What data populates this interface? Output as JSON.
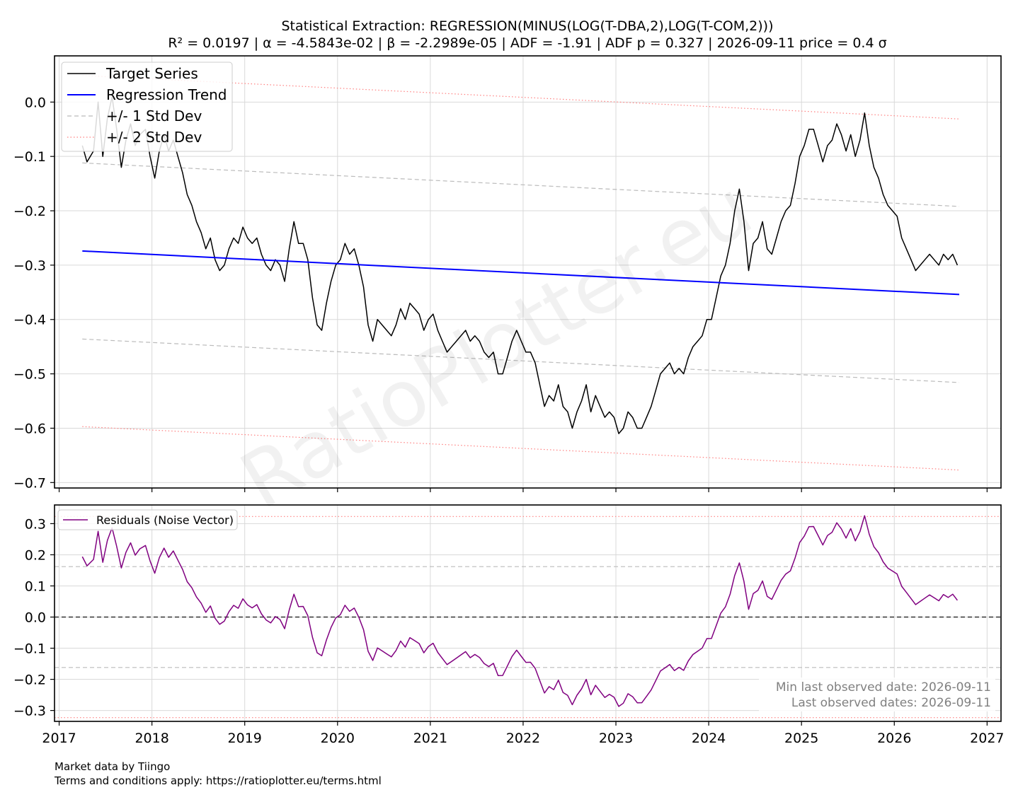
{
  "chart_data": [
    {
      "panel": "main",
      "type": "line",
      "title": "Statistical Extraction: REGRESSION(MINUS(LOG(T-DBA,2),LOG(T-COM,2)))",
      "subtitle": "R² = 0.0197 | α = -4.5843e-02 | β = -2.2989e-05 | ADF = -1.91 | ADF p = 0.327 | 2026-09-11 price = 0.4 σ",
      "xlabel": "",
      "ylabel": "",
      "xlim": [
        2016.95,
        2027.15
      ],
      "ylim": [
        -0.71,
        0.085
      ],
      "grid": true,
      "legend_position": "top-left",
      "xticks": [
        "2017",
        "2018",
        "2019",
        "2020",
        "2021",
        "2022",
        "2023",
        "2024",
        "2025",
        "2026",
        "2027"
      ],
      "yticks": [
        "0.0",
        "−0.1",
        "−0.2",
        "−0.3",
        "−0.4",
        "−0.5",
        "−0.6",
        "−0.7"
      ],
      "ytick_values": [
        0.0,
        -0.1,
        -0.2,
        -0.3,
        -0.4,
        -0.5,
        -0.6,
        -0.7
      ],
      "series": [
        {
          "name": "Target Series",
          "color": "#000000",
          "style": "solid",
          "points": [
            [
              2017.25,
              -0.08
            ],
            [
              2017.3,
              -0.11
            ],
            [
              2017.37,
              -0.09
            ],
            [
              2017.42,
              0.0
            ],
            [
              2017.47,
              -0.1
            ],
            [
              2017.52,
              -0.03
            ],
            [
              2017.57,
              0.01
            ],
            [
              2017.62,
              -0.05
            ],
            [
              2017.67,
              -0.12
            ],
            [
              2017.72,
              -0.07
            ],
            [
              2017.77,
              -0.04
            ],
            [
              2017.82,
              -0.08
            ],
            [
              2017.87,
              -0.06
            ],
            [
              2017.93,
              -0.05
            ],
            [
              2017.98,
              -0.1
            ],
            [
              2018.03,
              -0.14
            ],
            [
              2018.08,
              -0.09
            ],
            [
              2018.13,
              -0.06
            ],
            [
              2018.18,
              -0.09
            ],
            [
              2018.23,
              -0.07
            ],
            [
              2018.28,
              -0.1
            ],
            [
              2018.33,
              -0.13
            ],
            [
              2018.38,
              -0.17
            ],
            [
              2018.43,
              -0.19
            ],
            [
              2018.48,
              -0.22
            ],
            [
              2018.53,
              -0.24
            ],
            [
              2018.58,
              -0.27
            ],
            [
              2018.63,
              -0.25
            ],
            [
              2018.68,
              -0.29
            ],
            [
              2018.73,
              -0.31
            ],
            [
              2018.78,
              -0.3
            ],
            [
              2018.83,
              -0.27
            ],
            [
              2018.88,
              -0.25
            ],
            [
              2018.93,
              -0.26
            ],
            [
              2018.98,
              -0.23
            ],
            [
              2019.03,
              -0.25
            ],
            [
              2019.08,
              -0.26
            ],
            [
              2019.13,
              -0.25
            ],
            [
              2019.18,
              -0.28
            ],
            [
              2019.23,
              -0.3
            ],
            [
              2019.28,
              -0.31
            ],
            [
              2019.33,
              -0.29
            ],
            [
              2019.38,
              -0.3
            ],
            [
              2019.43,
              -0.33
            ],
            [
              2019.48,
              -0.27
            ],
            [
              2019.53,
              -0.22
            ],
            [
              2019.58,
              -0.26
            ],
            [
              2019.63,
              -0.26
            ],
            [
              2019.68,
              -0.29
            ],
            [
              2019.73,
              -0.36
            ],
            [
              2019.78,
              -0.41
            ],
            [
              2019.83,
              -0.42
            ],
            [
              2019.88,
              -0.37
            ],
            [
              2019.93,
              -0.33
            ],
            [
              2019.98,
              -0.3
            ],
            [
              2020.03,
              -0.29
            ],
            [
              2020.08,
              -0.26
            ],
            [
              2020.13,
              -0.28
            ],
            [
              2020.18,
              -0.27
            ],
            [
              2020.23,
              -0.3
            ],
            [
              2020.28,
              -0.34
            ],
            [
              2020.33,
              -0.41
            ],
            [
              2020.38,
              -0.44
            ],
            [
              2020.43,
              -0.4
            ],
            [
              2020.48,
              -0.41
            ],
            [
              2020.53,
              -0.42
            ],
            [
              2020.58,
              -0.43
            ],
            [
              2020.63,
              -0.41
            ],
            [
              2020.68,
              -0.38
            ],
            [
              2020.73,
              -0.4
            ],
            [
              2020.78,
              -0.37
            ],
            [
              2020.83,
              -0.38
            ],
            [
              2020.88,
              -0.39
            ],
            [
              2020.93,
              -0.42
            ],
            [
              2020.98,
              -0.4
            ],
            [
              2021.03,
              -0.39
            ],
            [
              2021.08,
              -0.42
            ],
            [
              2021.13,
              -0.44
            ],
            [
              2021.18,
              -0.46
            ],
            [
              2021.23,
              -0.45
            ],
            [
              2021.28,
              -0.44
            ],
            [
              2021.33,
              -0.43
            ],
            [
              2021.38,
              -0.42
            ],
            [
              2021.43,
              -0.44
            ],
            [
              2021.48,
              -0.43
            ],
            [
              2021.53,
              -0.44
            ],
            [
              2021.58,
              -0.46
            ],
            [
              2021.63,
              -0.47
            ],
            [
              2021.68,
              -0.46
            ],
            [
              2021.73,
              -0.5
            ],
            [
              2021.78,
              -0.5
            ],
            [
              2021.83,
              -0.47
            ],
            [
              2021.88,
              -0.44
            ],
            [
              2021.93,
              -0.42
            ],
            [
              2021.98,
              -0.44
            ],
            [
              2022.03,
              -0.46
            ],
            [
              2022.08,
              -0.46
            ],
            [
              2022.13,
              -0.48
            ],
            [
              2022.18,
              -0.52
            ],
            [
              2022.23,
              -0.56
            ],
            [
              2022.28,
              -0.54
            ],
            [
              2022.33,
              -0.55
            ],
            [
              2022.38,
              -0.52
            ],
            [
              2022.43,
              -0.56
            ],
            [
              2022.48,
              -0.57
            ],
            [
              2022.53,
              -0.6
            ],
            [
              2022.58,
              -0.57
            ],
            [
              2022.63,
              -0.55
            ],
            [
              2022.68,
              -0.52
            ],
            [
              2022.73,
              -0.57
            ],
            [
              2022.78,
              -0.54
            ],
            [
              2022.83,
              -0.56
            ],
            [
              2022.88,
              -0.58
            ],
            [
              2022.93,
              -0.57
            ],
            [
              2022.98,
              -0.58
            ],
            [
              2023.03,
              -0.61
            ],
            [
              2023.08,
              -0.6
            ],
            [
              2023.13,
              -0.57
            ],
            [
              2023.18,
              -0.58
            ],
            [
              2023.23,
              -0.6
            ],
            [
              2023.28,
              -0.6
            ],
            [
              2023.33,
              -0.58
            ],
            [
              2023.38,
              -0.56
            ],
            [
              2023.43,
              -0.53
            ],
            [
              2023.48,
              -0.5
            ],
            [
              2023.53,
              -0.49
            ],
            [
              2023.58,
              -0.48
            ],
            [
              2023.63,
              -0.5
            ],
            [
              2023.68,
              -0.49
            ],
            [
              2023.73,
              -0.5
            ],
            [
              2023.78,
              -0.47
            ],
            [
              2023.83,
              -0.45
            ],
            [
              2023.88,
              -0.44
            ],
            [
              2023.93,
              -0.43
            ],
            [
              2023.98,
              -0.4
            ],
            [
              2024.03,
              -0.4
            ],
            [
              2024.08,
              -0.36
            ],
            [
              2024.13,
              -0.32
            ],
            [
              2024.18,
              -0.3
            ],
            [
              2024.23,
              -0.26
            ],
            [
              2024.28,
              -0.2
            ],
            [
              2024.33,
              -0.16
            ],
            [
              2024.38,
              -0.22
            ],
            [
              2024.43,
              -0.31
            ],
            [
              2024.48,
              -0.26
            ],
            [
              2024.53,
              -0.25
            ],
            [
              2024.58,
              -0.22
            ],
            [
              2024.63,
              -0.27
            ],
            [
              2024.68,
              -0.28
            ],
            [
              2024.73,
              -0.25
            ],
            [
              2024.78,
              -0.22
            ],
            [
              2024.83,
              -0.2
            ],
            [
              2024.88,
              -0.19
            ],
            [
              2024.93,
              -0.15
            ],
            [
              2024.98,
              -0.1
            ],
            [
              2025.03,
              -0.08
            ],
            [
              2025.08,
              -0.05
            ],
            [
              2025.13,
              -0.05
            ],
            [
              2025.18,
              -0.08
            ],
            [
              2025.23,
              -0.11
            ],
            [
              2025.28,
              -0.08
            ],
            [
              2025.33,
              -0.07
            ],
            [
              2025.38,
              -0.04
            ],
            [
              2025.43,
              -0.06
            ],
            [
              2025.48,
              -0.09
            ],
            [
              2025.53,
              -0.06
            ],
            [
              2025.58,
              -0.1
            ],
            [
              2025.63,
              -0.07
            ],
            [
              2025.68,
              -0.02
            ],
            [
              2025.73,
              -0.08
            ],
            [
              2025.78,
              -0.12
            ],
            [
              2025.83,
              -0.14
            ],
            [
              2025.88,
              -0.17
            ],
            [
              2025.93,
              -0.19
            ],
            [
              2025.98,
              -0.2
            ],
            [
              2026.03,
              -0.21
            ],
            [
              2026.08,
              -0.25
            ],
            [
              2026.13,
              -0.27
            ],
            [
              2026.18,
              -0.29
            ],
            [
              2026.23,
              -0.31
            ],
            [
              2026.28,
              -0.3
            ],
            [
              2026.33,
              -0.29
            ],
            [
              2026.38,
              -0.28
            ],
            [
              2026.43,
              -0.29
            ],
            [
              2026.48,
              -0.3
            ],
            [
              2026.53,
              -0.28
            ],
            [
              2026.58,
              -0.29
            ],
            [
              2026.63,
              -0.28
            ],
            [
              2026.68,
              -0.3
            ]
          ]
        },
        {
          "name": "Regression Trend",
          "color": "#0000ff",
          "style": "solid",
          "points": [
            [
              2017.25,
              -0.274
            ],
            [
              2026.7,
              -0.354
            ]
          ]
        },
        {
          "name": "+/- 1 Std Dev",
          "color": "#bbbbbb",
          "style": "dashed",
          "points": [
            [
              2017.25,
              -0.112
            ],
            [
              2026.7,
              -0.192
            ]
          ]
        },
        {
          "name": "+/- 1 Std Dev (lower)",
          "legend": false,
          "color": "#bbbbbb",
          "style": "dashed",
          "points": [
            [
              2017.25,
              -0.436
            ],
            [
              2026.7,
              -0.516
            ]
          ]
        },
        {
          "name": "+/- 2 Std Dev",
          "color": "#ff8080",
          "style": "dotted",
          "points": [
            [
              2017.25,
              0.049
            ],
            [
              2026.7,
              -0.031
            ]
          ]
        },
        {
          "name": "+/- 2 Std Dev (lower)",
          "legend": false,
          "color": "#ff8080",
          "style": "dotted",
          "points": [
            [
              2017.25,
              -0.597
            ],
            [
              2026.7,
              -0.677
            ]
          ]
        }
      ],
      "watermark": "RatioPlotter.eu"
    },
    {
      "panel": "residuals",
      "type": "line",
      "xlim": [
        2016.95,
        2027.15
      ],
      "ylim": [
        -0.335,
        0.36
      ],
      "grid": true,
      "legend_position": "top-left",
      "xticks": [
        "2017",
        "2018",
        "2019",
        "2020",
        "2021",
        "2022",
        "2023",
        "2024",
        "2025",
        "2026",
        "2027"
      ],
      "yticks": [
        "0.3",
        "0.2",
        "0.1",
        "0.0",
        "−0.1",
        "−0.2",
        "−0.3"
      ],
      "ytick_values": [
        0.3,
        0.2,
        0.1,
        0.0,
        -0.1,
        -0.2,
        -0.3
      ],
      "reference_lines": [
        {
          "value": 0.0,
          "color": "#333333",
          "style": "dashed"
        },
        {
          "value": 0.162,
          "color": "#bbbbbb",
          "style": "dashed"
        },
        {
          "value": -0.162,
          "color": "#bbbbbb",
          "style": "dashed"
        },
        {
          "value": 0.323,
          "color": "#ff8080",
          "style": "dotted"
        },
        {
          "value": -0.323,
          "color": "#ff8080",
          "style": "dotted"
        }
      ],
      "series": [
        {
          "name": "Residuals (Noise Vector)",
          "color": "#800080",
          "style": "solid",
          "derived_from": "Target Series minus Regression Trend"
        }
      ],
      "annotations": [
        "Min last observed date: 2026-09-11",
        "Last observed dates: 2026-09-11"
      ]
    }
  ],
  "footer": {
    "line1": "Market data by Tiingo",
    "line2": "Terms and conditions apply: https://ratioplotter.eu/terms.html"
  }
}
